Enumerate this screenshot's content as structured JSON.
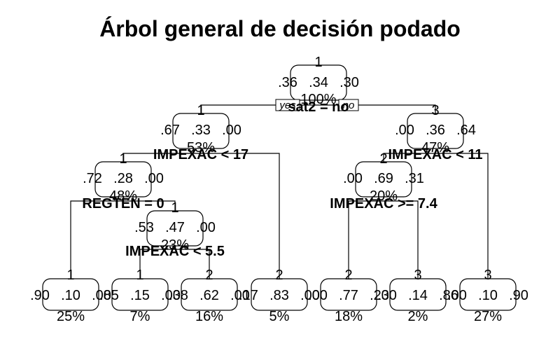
{
  "title": "Árbol general de decisión podado",
  "yes_label": "yes",
  "no_label": "no",
  "nodes": [
    {
      "id": "n1",
      "cls": "1",
      "probs": [
        ".36",
        ".34",
        ".30"
      ],
      "pct": "100%"
    },
    {
      "id": "n2",
      "cls": "1",
      "probs": [
        ".67",
        ".33",
        ".00"
      ],
      "pct": "53%"
    },
    {
      "id": "n3",
      "cls": "3",
      "probs": [
        ".00",
        ".36",
        ".64"
      ],
      "pct": "47%"
    },
    {
      "id": "n4",
      "cls": "1",
      "probs": [
        ".72",
        ".28",
        ".00"
      ],
      "pct": "48%"
    },
    {
      "id": "n5",
      "cls": "2",
      "probs": [
        ".00",
        ".69",
        ".31"
      ],
      "pct": "20%"
    },
    {
      "id": "n6",
      "cls": "1",
      "probs": [
        ".53",
        ".47",
        ".00"
      ],
      "pct": "23%"
    },
    {
      "id": "l1",
      "cls": "1",
      "probs": [
        ".90",
        ".10",
        ".00"
      ],
      "pct": "25%"
    },
    {
      "id": "l2",
      "cls": "1",
      "probs": [
        ".85",
        ".15",
        ".00"
      ],
      "pct": "7%"
    },
    {
      "id": "l3",
      "cls": "2",
      "probs": [
        ".38",
        ".62",
        ".00"
      ],
      "pct": "16%"
    },
    {
      "id": "l4",
      "cls": "2",
      "probs": [
        ".17",
        ".83",
        ".00"
      ],
      "pct": "5%"
    },
    {
      "id": "l5",
      "cls": "2",
      "probs": [
        ".00",
        ".77",
        ".23"
      ],
      "pct": "18%"
    },
    {
      "id": "l6",
      "cls": "3",
      "probs": [
        ".00",
        ".14",
        ".86"
      ],
      "pct": "2%"
    },
    {
      "id": "l7",
      "cls": "3",
      "probs": [
        ".00",
        ".10",
        ".90"
      ],
      "pct": "27%"
    }
  ],
  "splits": {
    "n1": "sat2 = no",
    "n2": "IMPEXAC < 17",
    "n3": "IMPEXAC < 11",
    "n4": "REGTEN = 0",
    "n5": "IMPEXAC >= 7.4",
    "n6": "IMPEXAC < 5.5"
  }
}
